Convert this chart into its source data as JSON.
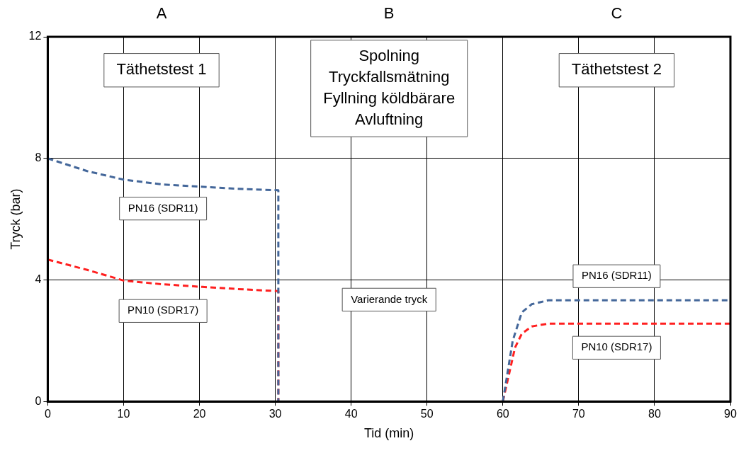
{
  "chart_data": {
    "type": "line",
    "xlabel": "Tid (min)",
    "ylabel": "Tryck (bar)",
    "xlim": [
      0,
      90
    ],
    "xticks": [
      0,
      10,
      20,
      30,
      40,
      50,
      60,
      70,
      80,
      90
    ],
    "ylim": [
      0,
      12
    ],
    "yticks": [
      0,
      4,
      8,
      12
    ],
    "grid": true,
    "legend": false,
    "marker": "none",
    "line_style": "dashed",
    "series": [
      {
        "name": "PN16 (SDR11)",
        "color": "#44679a",
        "x": [
          0,
          5.2,
          10,
          15.2,
          20,
          25,
          30.4,
          30.4
        ],
        "values": [
          8,
          7.58,
          7.3,
          7.14,
          7.07,
          7.0,
          6.95,
          0
        ]
      },
      {
        "name": "PN10 (SDR17)",
        "color": "#ff2020",
        "x": [
          0,
          5.2,
          10,
          15,
          20.4,
          25,
          30.4,
          30.4
        ],
        "values": [
          4.67,
          4.33,
          3.98,
          3.86,
          3.77,
          3.7,
          3.63,
          0
        ]
      },
      {
        "name": "PN16 (SDR11)",
        "color": "#44679a",
        "x": [
          60,
          61.3,
          62.5,
          63.8,
          66,
          70,
          80,
          90
        ],
        "values": [
          0,
          2.0,
          2.93,
          3.2,
          3.33,
          3.33,
          3.33,
          3.33
        ]
      },
      {
        "name": "PN10 (SDR17)",
        "color": "#ff2020",
        "x": [
          60,
          61.6,
          62.5,
          63.8,
          66,
          70,
          80,
          90
        ],
        "values": [
          0,
          1.77,
          2.23,
          2.47,
          2.56,
          2.56,
          2.56,
          2.56
        ]
      }
    ],
    "annotations": [
      "Täthetstest 1",
      "Spolning\nTryckfallsmätning\nFyllning köldbärare\nAvluftning",
      "Täthetstest 2",
      "Varierande tryck",
      "A",
      "B",
      "C"
    ]
  }
}
